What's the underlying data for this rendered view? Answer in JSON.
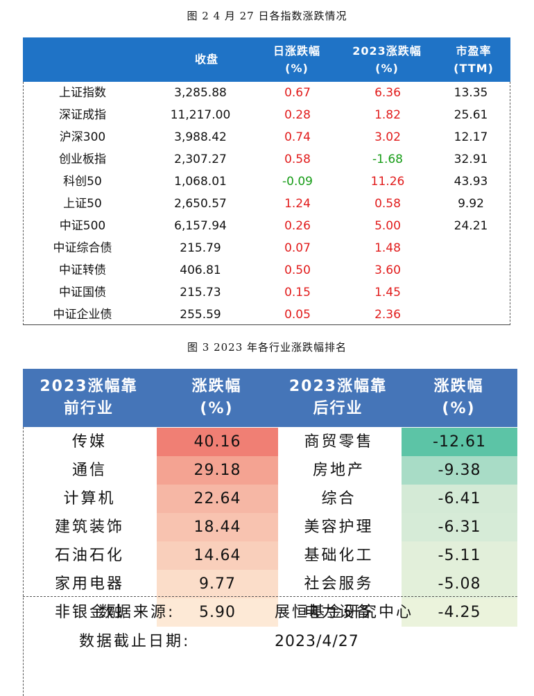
{
  "fig2": {
    "title": "图 2   4 月 27 日各指数涨跌情况",
    "headers": {
      "close": "收盘",
      "daily_line1": "日涨跌幅",
      "daily_line2": "(%)",
      "ytd_line1": "2023涨跌幅",
      "ytd_line2": "(%)",
      "pe_line1": "市盈率",
      "pe_line2": "(TTM)"
    },
    "rows": [
      {
        "name": "上证指数",
        "close": "3,285.88",
        "daily": "0.67",
        "ytd": "6.36",
        "pe": "13.35"
      },
      {
        "name": "深证成指",
        "close": "11,217.00",
        "daily": "0.28",
        "ytd": "1.82",
        "pe": "25.61"
      },
      {
        "name": "沪深300",
        "close": "3,988.42",
        "daily": "0.74",
        "ytd": "3.02",
        "pe": "12.17"
      },
      {
        "name": "创业板指",
        "close": "2,307.27",
        "daily": "0.58",
        "ytd": "-1.68",
        "pe": "32.91"
      },
      {
        "name": "科创50",
        "close": "1,068.01",
        "daily": "-0.09",
        "ytd": "11.26",
        "pe": "43.93"
      },
      {
        "name": "上证50",
        "close": "2,650.57",
        "daily": "1.24",
        "ytd": "0.58",
        "pe": "9.92"
      },
      {
        "name": "中证500",
        "close": "6,157.94",
        "daily": "0.26",
        "ytd": "5.00",
        "pe": "24.21"
      },
      {
        "name": "中证综合债",
        "close": "215.79",
        "daily": "0.07",
        "ytd": "1.48",
        "pe": ""
      },
      {
        "name": "中证转债",
        "close": "406.81",
        "daily": "0.50",
        "ytd": "3.60",
        "pe": ""
      },
      {
        "name": "中证国债",
        "close": "215.73",
        "daily": "0.15",
        "ytd": "1.45",
        "pe": ""
      },
      {
        "name": "中证企业债",
        "close": "255.59",
        "daily": "0.05",
        "ytd": "2.36",
        "pe": ""
      }
    ]
  },
  "fig3": {
    "title": "图 3   2023 年各行业涨跌幅排名",
    "headers": {
      "top_line1": "2023涨幅靠",
      "top_line2": "前行业",
      "top_chg_line1": "涨跌幅",
      "top_chg_line2": "(%)",
      "bottom_line1": "2023涨幅靠",
      "bottom_line2": "后行业",
      "bottom_chg_line1": "涨跌幅",
      "bottom_chg_line2": "(%)"
    },
    "rows": [
      {
        "top": "传媒",
        "top_chg": "40.16",
        "top_color": "#f07f74",
        "bottom": "商贸零售",
        "bottom_chg": "-12.61",
        "bottom_color": "#5cc4a6"
      },
      {
        "top": "通信",
        "top_chg": "29.18",
        "top_color": "#f4a392",
        "bottom": "房地产",
        "bottom_chg": "-9.38",
        "bottom_color": "#a8dcc6"
      },
      {
        "top": "计算机",
        "top_chg": "22.64",
        "top_color": "#f6b7a5",
        "bottom": "综合",
        "bottom_chg": "-6.41",
        "bottom_color": "#d4ead6"
      },
      {
        "top": "建筑装饰",
        "top_chg": "18.44",
        "top_color": "#f8c3b0",
        "bottom": "美容护理",
        "bottom_chg": "-6.31",
        "bottom_color": "#d6ebd7"
      },
      {
        "top": "石油石化",
        "top_chg": "14.64",
        "top_color": "#f9cfbb",
        "bottom": "基础化工",
        "bottom_chg": "-5.11",
        "bottom_color": "#e2efda"
      },
      {
        "top": "家用电器",
        "top_chg": "9.77",
        "top_color": "#fbddc9",
        "bottom": "社会服务",
        "bottom_chg": "-5.08",
        "bottom_color": "#e3f0da"
      },
      {
        "top": "非银金融",
        "top_chg": "5.90",
        "top_color": "#fde9d6",
        "bottom": "电力设备",
        "bottom_chg": "-4.25",
        "bottom_color": "#ebf3dc"
      }
    ],
    "footer": {
      "source_label": "数据来源:",
      "source_value": "展恒基金研究中心",
      "date_label": "数据截止日期:",
      "date_value": "2023/4/27"
    }
  }
}
